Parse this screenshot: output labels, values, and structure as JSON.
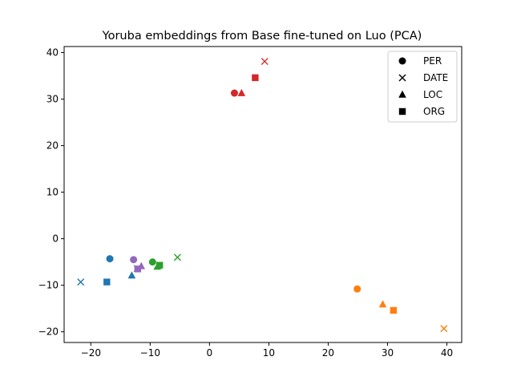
{
  "chart_data": {
    "type": "scatter",
    "title": "Yoruba embeddings from Base fine-tuned on Luo (PCA)",
    "xlabel": "",
    "ylabel": "",
    "xlim": [
      -24.5,
      42.5
    ],
    "ylim": [
      -22.3,
      41.3
    ],
    "xticks": [
      -20,
      -10,
      0,
      10,
      20,
      30,
      40
    ],
    "yticks": [
      -20,
      -10,
      0,
      10,
      20,
      30,
      40
    ],
    "grid": false,
    "legend_position": "top-right",
    "legend": [
      {
        "label": "PER",
        "marker": "circle"
      },
      {
        "label": "DATE",
        "marker": "x"
      },
      {
        "label": "LOC",
        "marker": "triangle"
      },
      {
        "label": "ORG",
        "marker": "square"
      }
    ],
    "colors": {
      "blue": "#1f77b4",
      "orange": "#ff7f0e",
      "green": "#2ca02c",
      "red": "#d62728",
      "purple": "#9467bd"
    },
    "points": [
      {
        "group": "blue",
        "type": "PER",
        "x": -16.8,
        "y": -4.3
      },
      {
        "group": "blue",
        "type": "DATE",
        "x": -21.7,
        "y": -9.3
      },
      {
        "group": "blue",
        "type": "LOC",
        "x": -13.1,
        "y": -7.9
      },
      {
        "group": "blue",
        "type": "ORG",
        "x": -17.3,
        "y": -9.3
      },
      {
        "group": "orange",
        "type": "PER",
        "x": 24.9,
        "y": -10.8
      },
      {
        "group": "orange",
        "type": "DATE",
        "x": 39.5,
        "y": -19.3
      },
      {
        "group": "orange",
        "type": "LOC",
        "x": 29.2,
        "y": -14.1
      },
      {
        "group": "orange",
        "type": "ORG",
        "x": 31.0,
        "y": -15.4
      },
      {
        "group": "green",
        "type": "PER",
        "x": -9.6,
        "y": -5.0
      },
      {
        "group": "green",
        "type": "DATE",
        "x": -5.4,
        "y": -4.0
      },
      {
        "group": "green",
        "type": "LOC",
        "x": -8.8,
        "y": -6.0
      },
      {
        "group": "green",
        "type": "ORG",
        "x": -8.4,
        "y": -5.7
      },
      {
        "group": "red",
        "type": "PER",
        "x": 4.2,
        "y": 31.3
      },
      {
        "group": "red",
        "type": "DATE",
        "x": 9.3,
        "y": 38.1
      },
      {
        "group": "red",
        "type": "LOC",
        "x": 5.4,
        "y": 31.3
      },
      {
        "group": "red",
        "type": "ORG",
        "x": 7.7,
        "y": 34.6
      },
      {
        "group": "purple",
        "type": "PER",
        "x": -12.8,
        "y": -4.5
      },
      {
        "group": "purple",
        "type": "DATE",
        "x": -12.2,
        "y": -6.4
      },
      {
        "group": "purple",
        "type": "LOC",
        "x": -11.5,
        "y": -5.9
      },
      {
        "group": "purple",
        "type": "ORG",
        "x": -12.1,
        "y": -6.5
      }
    ]
  }
}
